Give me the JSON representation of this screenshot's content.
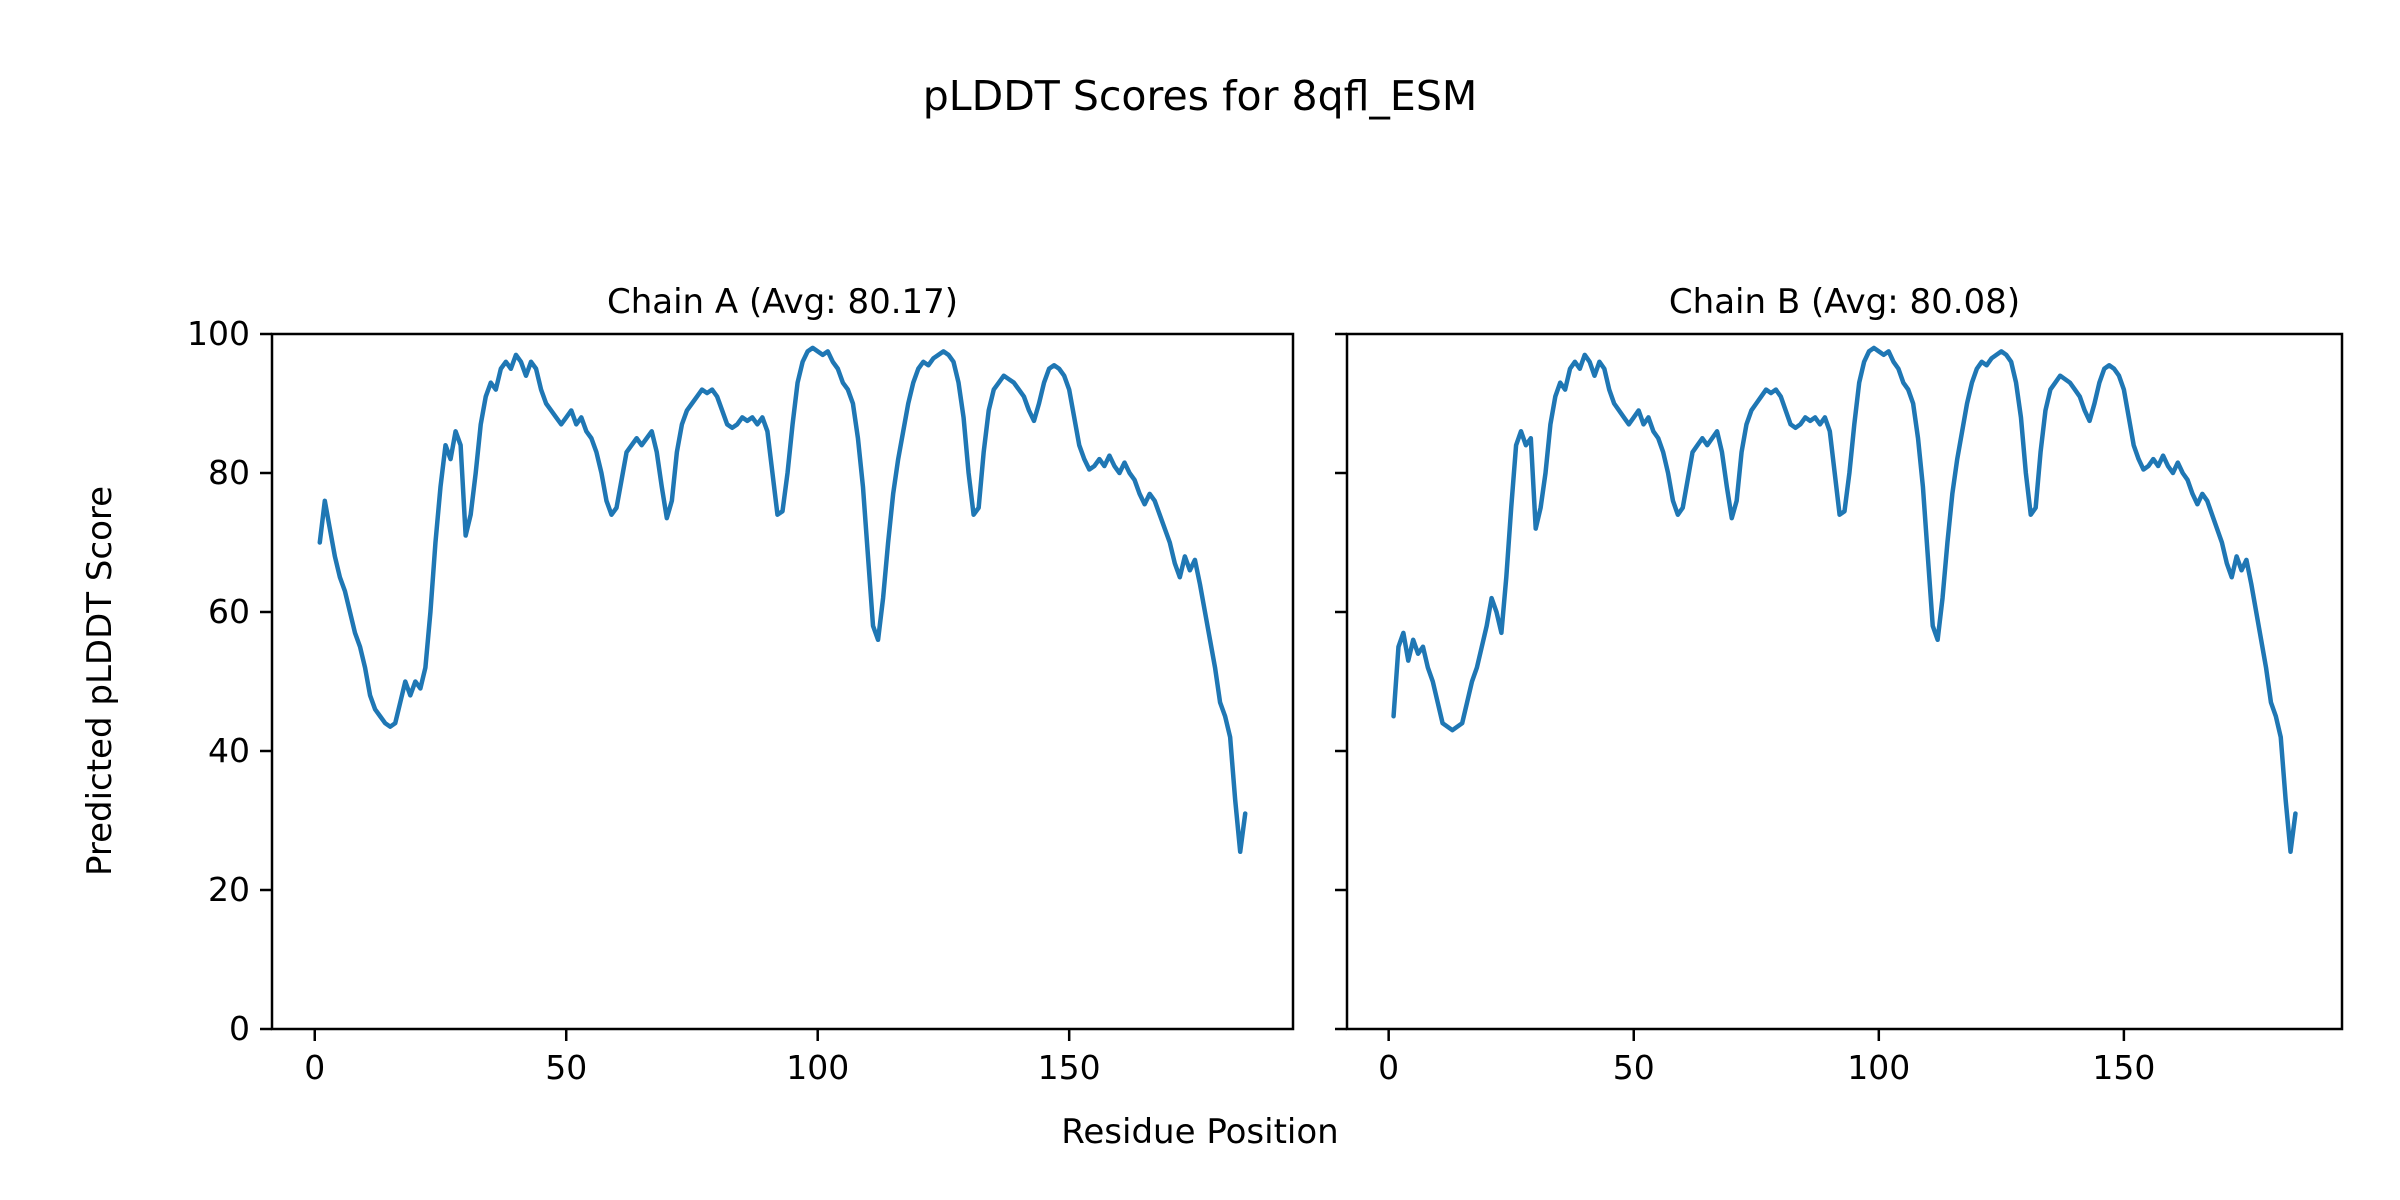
{
  "figure": {
    "title": "pLDDT Scores for 8qfl_ESM",
    "xlabel": "Residue Position",
    "ylabel": "Predicted pLDDT Score"
  },
  "chart_data": [
    {
      "type": "line",
      "title": "Chain A (Avg: 80.17)",
      "chain": "A",
      "average": 80.17,
      "xlabel": "Residue Position",
      "ylabel": "Predicted pLDDT Score",
      "xlim": [
        -8.5,
        194.5
      ],
      "ylim": [
        0,
        100
      ],
      "xticks": [
        0,
        50,
        100,
        150
      ],
      "yticks": [
        0,
        20,
        40,
        60,
        80,
        100
      ],
      "line_color": "#1f77b4",
      "x_start": 1,
      "values": [
        70,
        76,
        72,
        68,
        65,
        63,
        60,
        57,
        55,
        52,
        48,
        46,
        45,
        44,
        43.5,
        44,
        47,
        50,
        48,
        50,
        49,
        52,
        60,
        70,
        78,
        84,
        82,
        86,
        84,
        71,
        74,
        80,
        87,
        91,
        93,
        92,
        95,
        96,
        95,
        97,
        96,
        94,
        96,
        95,
        92,
        90,
        89,
        88,
        87,
        88,
        89,
        87,
        88,
        86,
        85,
        83,
        80,
        76,
        74,
        75,
        79,
        83,
        84,
        85,
        84,
        85,
        86,
        83,
        78,
        73.5,
        76,
        83,
        87,
        89,
        90,
        91,
        92,
        91.5,
        92,
        91,
        89,
        87,
        86.5,
        87,
        88,
        87.5,
        88,
        87,
        88,
        86,
        80,
        74,
        74.5,
        80,
        87,
        93,
        96,
        97.5,
        98,
        97.5,
        97,
        97.5,
        96,
        95,
        93,
        92,
        90,
        85,
        78,
        68,
        58,
        56,
        62,
        70,
        77,
        82,
        86,
        90,
        93,
        95,
        96,
        95.5,
        96.5,
        97,
        97.5,
        97,
        96,
        93,
        88,
        80,
        74,
        75,
        83,
        89,
        92,
        93,
        94,
        93.5,
        93,
        92,
        91,
        89,
        87.5,
        90,
        93,
        95,
        95.5,
        95,
        94,
        92,
        88,
        84,
        82,
        80.5,
        81,
        82,
        81,
        82.5,
        81,
        80,
        81.5,
        80,
        79,
        77,
        75.5,
        77,
        76,
        74,
        72,
        70,
        67,
        65,
        68,
        66,
        67.5,
        64,
        60,
        56,
        52,
        47,
        45,
        42,
        33,
        25.5,
        31
      ]
    },
    {
      "type": "line",
      "title": "Chain B (Avg: 80.08)",
      "chain": "B",
      "average": 80.08,
      "xlabel": "Residue Position",
      "ylabel": "Predicted pLDDT Score",
      "xlim": [
        -8.5,
        194.5
      ],
      "ylim": [
        0,
        100
      ],
      "xticks": [
        0,
        50,
        100,
        150
      ],
      "yticks": [
        0,
        20,
        40,
        60,
        80,
        100
      ],
      "line_color": "#1f77b4",
      "x_start": 1,
      "values": [
        45,
        55,
        57,
        53,
        56,
        54,
        55,
        52,
        50,
        47,
        44,
        43.5,
        43,
        43.5,
        44,
        47,
        50,
        52,
        55,
        58,
        62,
        60,
        57,
        65,
        75,
        84,
        86,
        84,
        85,
        72,
        75,
        80,
        87,
        91,
        93,
        92,
        95,
        96,
        95,
        97,
        96,
        94,
        96,
        95,
        92,
        90,
        89,
        88,
        87,
        88,
        89,
        87,
        88,
        86,
        85,
        83,
        80,
        76,
        74,
        75,
        79,
        83,
        84,
        85,
        84,
        85,
        86,
        83,
        78,
        73.5,
        76,
        83,
        87,
        89,
        90,
        91,
        92,
        91.5,
        92,
        91,
        89,
        87,
        86.5,
        87,
        88,
        87.5,
        88,
        87,
        88,
        86,
        80,
        74,
        74.5,
        80,
        87,
        93,
        96,
        97.5,
        98,
        97.5,
        97,
        97.5,
        96,
        95,
        93,
        92,
        90,
        85,
        78,
        68,
        58,
        56,
        62,
        70,
        77,
        82,
        86,
        90,
        93,
        95,
        96,
        95.5,
        96.5,
        97,
        97.5,
        97,
        96,
        93,
        88,
        80,
        74,
        75,
        83,
        89,
        92,
        93,
        94,
        93.5,
        93,
        92,
        91,
        89,
        87.5,
        90,
        93,
        95,
        95.5,
        95,
        94,
        92,
        88,
        84,
        82,
        80.5,
        81,
        82,
        81,
        82.5,
        81,
        80,
        81.5,
        80,
        79,
        77,
        75.5,
        77,
        76,
        74,
        72,
        70,
        67,
        65,
        68,
        66,
        67.5,
        64,
        60,
        56,
        52,
        47,
        45,
        42,
        33,
        25.5,
        31
      ]
    }
  ]
}
